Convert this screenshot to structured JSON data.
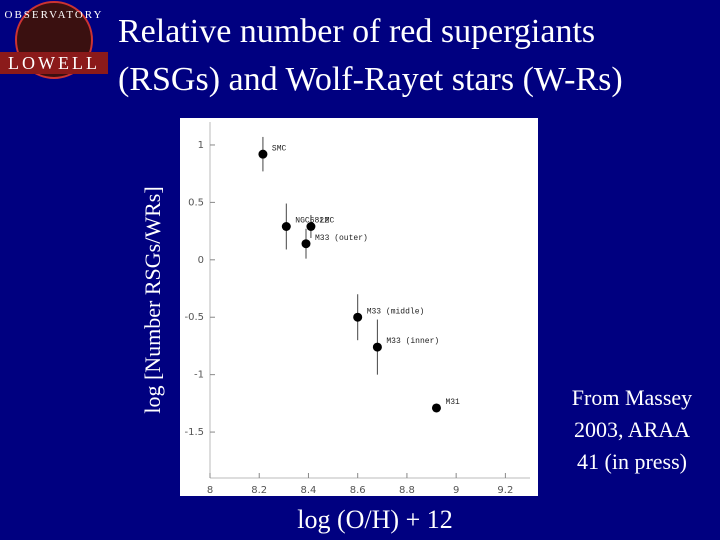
{
  "logo": {
    "arc": "OBSERVATORY",
    "name": "LOWELL"
  },
  "chart_data": {
    "type": "scatter",
    "title": [
      "Relative number of  red supergiants",
      "(RSGs) and Wolf-Rayet stars (W-Rs)"
    ],
    "xlabel": "log  (O/H) + 12",
    "ylabel": "log [Number RSGs/WRs]",
    "annotation": [
      "From Massey",
      "2003, ARAA",
      "41 (in press)"
    ],
    "labels": [
      "SMC",
      "NGC6822",
      "LMC",
      "M33 (outer)",
      "M33 (middle)",
      "M33 (inner)",
      "M31"
    ],
    "x": [
      8.215,
      8.31,
      8.41,
      8.39,
      8.6,
      8.68,
      8.92
    ],
    "y": [
      0.92,
      0.29,
      0.29,
      0.14,
      -0.5,
      -0.76,
      -1.29
    ],
    "errors": [
      0.15,
      0.2,
      0.1,
      0.13,
      0.2,
      0.24,
      null
    ],
    "color": "#000000",
    "xlim": [
      8,
      9.3
    ],
    "xticks": [
      8,
      8.2,
      8.4,
      8.6,
      8.8,
      9,
      9.2
    ],
    "ylim": [
      -1.9,
      1.2
    ],
    "yticks": [
      1,
      0.5,
      0,
      -0.5,
      -1,
      -1.5
    ]
  }
}
